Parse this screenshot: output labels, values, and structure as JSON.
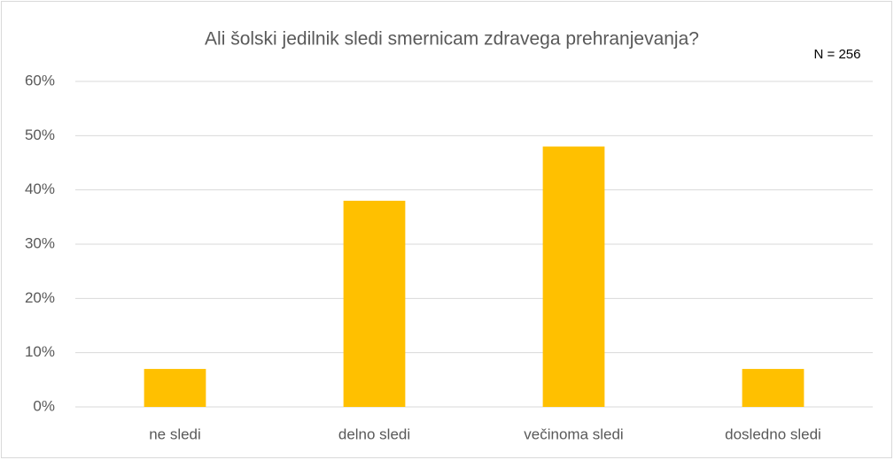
{
  "chart_data": {
    "type": "bar",
    "title": "Ali šolski jedilnik sledi smernicam zdravega prehranjevanja?",
    "annotation": "N = 256",
    "categories": [
      "ne sledi",
      "delno sledi",
      "večinoma sledi",
      "dosledno sledi"
    ],
    "values": [
      7,
      38,
      48,
      7
    ],
    "color": "#ffc000",
    "ylim": [
      0,
      60
    ],
    "yticks": [
      {
        "value": 0,
        "label": "0%"
      },
      {
        "value": 10,
        "label": "10%"
      },
      {
        "value": 20,
        "label": "20%"
      },
      {
        "value": 30,
        "label": "30%"
      },
      {
        "value": 40,
        "label": "40%"
      },
      {
        "value": 50,
        "label": "50%"
      },
      {
        "value": 60,
        "label": "60%"
      }
    ],
    "grid": true
  }
}
